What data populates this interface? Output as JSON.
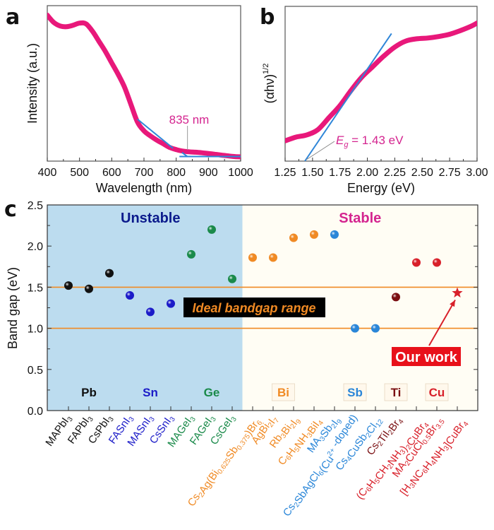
{
  "chart_data": [
    {
      "panel": "a",
      "type": "line",
      "title": "",
      "xlabel": "Wavelength (nm)",
      "ylabel": "Intensity (a.u.)",
      "xlim": [
        400,
        1000
      ],
      "ylim": [
        0,
        1
      ],
      "xticks": [
        "400",
        "500",
        "600",
        "700",
        "800",
        "900",
        "1000"
      ],
      "xtick_values": [
        400,
        500,
        600,
        700,
        800,
        900,
        1000
      ],
      "grid": false,
      "series": [
        {
          "name": "absorption",
          "color": "#e8187a",
          "x": [
            400,
            420,
            440,
            460,
            480,
            500,
            520,
            540,
            560,
            580,
            600,
            620,
            640,
            660,
            680,
            700,
            720,
            740,
            760,
            780,
            800,
            820,
            840,
            860,
            880,
            900,
            920,
            940,
            960,
            980,
            1000
          ],
          "y": [
            0.99,
            0.94,
            0.915,
            0.91,
            0.92,
            0.935,
            0.93,
            0.88,
            0.81,
            0.74,
            0.66,
            0.58,
            0.49,
            0.37,
            0.25,
            0.19,
            0.155,
            0.125,
            0.1,
            0.075,
            0.06,
            0.05,
            0.045,
            0.042,
            0.038,
            0.033,
            0.028,
            0.022,
            0.017,
            0.012,
            0.01
          ]
        }
      ],
      "tangent_lines": [
        {
          "color": "#2f86d8",
          "x": [
            680,
            790
          ],
          "y": [
            0.27,
            0.07
          ]
        },
        {
          "color": "#2f86d8",
          "x": [
            810,
            1000
          ],
          "y": [
            0.012,
            0.012
          ]
        },
        {
          "color": "#2f86d8",
          "x": [
            818,
            835
          ],
          "y": [
            0.04,
            0.012
          ]
        }
      ],
      "annotation": {
        "text": "835 nm",
        "x": 835,
        "color": "#d4248f"
      }
    },
    {
      "panel": "b",
      "type": "line",
      "title": "",
      "xlabel": "Energy (eV)",
      "ylabel_base": "(αhν)",
      "ylabel_sup": "1/2",
      "xlim": [
        1.25,
        3.0
      ],
      "ylim": [
        0,
        1
      ],
      "xticks": [
        "1.25",
        "1.50",
        "1.75",
        "2.00",
        "2.25",
        "2.50",
        "2.75",
        "3.00"
      ],
      "xtick_values": [
        1.25,
        1.5,
        1.75,
        2.0,
        2.25,
        2.5,
        2.75,
        3.0
      ],
      "grid": false,
      "series": [
        {
          "name": "tauc",
          "color": "#e8187a",
          "x": [
            1.25,
            1.35,
            1.45,
            1.55,
            1.65,
            1.75,
            1.85,
            1.95,
            2.05,
            2.15,
            2.25,
            2.35,
            2.45,
            2.55,
            2.65,
            2.75,
            2.85,
            2.95,
            3.0
          ],
          "y": [
            0.135,
            0.16,
            0.175,
            0.21,
            0.29,
            0.37,
            0.47,
            0.56,
            0.63,
            0.7,
            0.76,
            0.8,
            0.815,
            0.82,
            0.83,
            0.845,
            0.87,
            0.9,
            0.92
          ]
        }
      ],
      "tangent_lines": [
        {
          "color": "#2f86d8",
          "x": [
            1.43,
            2.22
          ],
          "y": [
            0.0,
            0.85
          ]
        }
      ],
      "annotation": {
        "text_base": "E",
        "text_sub": "g",
        "text_rest": " = 1.43 eV",
        "x": 1.43,
        "color": "#d4248f"
      }
    },
    {
      "panel": "c",
      "type": "scatter",
      "title": "",
      "xlabel": "",
      "ylabel": "Band gap (eV)",
      "ylim": [
        0.0,
        2.5
      ],
      "yticks": [
        "0.0",
        "0.5",
        "1.0",
        "1.5",
        "2.0",
        "2.5"
      ],
      "ytick_values": [
        0.0,
        0.5,
        1.0,
        1.5,
        2.0,
        2.5
      ],
      "grid": false,
      "reference_lines": [
        1.0,
        1.5
      ],
      "reference_line_color": "#f08a24",
      "regions": [
        {
          "label": "Unstable",
          "from_index": 0,
          "to_index": 8,
          "fill": "#bcdcef",
          "label_color": "#0b1a8c"
        },
        {
          "label": "Stable",
          "from_index": 9,
          "to_index": 19,
          "fill": "#fffdf4",
          "label_color": "#d4248f"
        }
      ],
      "band_label": {
        "text": "Ideal bandgap range",
        "color": "#f08a24",
        "background": "#000000"
      },
      "groups": [
        {
          "label": "Pb",
          "color": "#111111",
          "indices": [
            0,
            1,
            2
          ]
        },
        {
          "label": "Sn",
          "color": "#1b1bc8",
          "indices": [
            3,
            4,
            5
          ]
        },
        {
          "label": "Ge",
          "color": "#1a8a4a",
          "indices": [
            6,
            7,
            8
          ]
        },
        {
          "label": "Bi",
          "color": "#f08a24",
          "indices": [
            9,
            10,
            11,
            12
          ]
        },
        {
          "label": "Sb",
          "color": "#2a86d8",
          "indices": [
            13,
            14,
            15
          ]
        },
        {
          "label": "Ti",
          "color": "#7a0f12",
          "indices": [
            16
          ]
        },
        {
          "label": "Cu",
          "color": "#d8202a",
          "indices": [
            17,
            18,
            19
          ]
        }
      ],
      "categories": [
        {
          "label": "MAPbI3",
          "parts": [
            [
              "MAPbI",
              ""
            ],
            [
              "3",
              "sub"
            ]
          ],
          "value": 1.52,
          "color": "#111111"
        },
        {
          "label": "FAPbI3",
          "parts": [
            [
              "FAPbI",
              ""
            ],
            [
              "3",
              "sub"
            ]
          ],
          "value": 1.48,
          "color": "#111111"
        },
        {
          "label": "CsPbI3",
          "parts": [
            [
              "CsPbI",
              ""
            ],
            [
              "3",
              "sub"
            ]
          ],
          "value": 1.67,
          "color": "#111111"
        },
        {
          "label": "FASnI3",
          "parts": [
            [
              "FASnI",
              ""
            ],
            [
              "3",
              "sub"
            ]
          ],
          "value": 1.4,
          "color": "#1b1bc8"
        },
        {
          "label": "MASnI3",
          "parts": [
            [
              "MASnI",
              ""
            ],
            [
              "3",
              "sub"
            ]
          ],
          "value": 1.2,
          "color": "#1b1bc8"
        },
        {
          "label": "CsSnI3",
          "parts": [
            [
              "CsSnI",
              ""
            ],
            [
              "3",
              "sub"
            ]
          ],
          "value": 1.3,
          "color": "#1b1bc8"
        },
        {
          "label": "MAGeI3",
          "parts": [
            [
              "MAGeI",
              ""
            ],
            [
              "3",
              "sub"
            ]
          ],
          "value": 1.9,
          "color": "#1a8a4a"
        },
        {
          "label": "FAGeI3",
          "parts": [
            [
              "FAGeI",
              ""
            ],
            [
              "3",
              "sub"
            ]
          ],
          "value": 2.2,
          "color": "#1a8a4a"
        },
        {
          "label": "CsGeI3",
          "parts": [
            [
              "CsGeI",
              ""
            ],
            [
              "3",
              "sub"
            ]
          ],
          "value": 1.6,
          "color": "#1a8a4a"
        },
        {
          "label": "Cs2Ag(Bi0.625Sb0.375)Br6",
          "parts": [
            [
              "Cs",
              ""
            ],
            [
              "2",
              "sub"
            ],
            [
              "Ag(Bi",
              ""
            ],
            [
              "0.625",
              "sub"
            ],
            [
              "Sb",
              ""
            ],
            [
              "0.375",
              "sub"
            ],
            [
              ")Br",
              ""
            ],
            [
              "6",
              "sub"
            ]
          ],
          "value": 1.86,
          "color": "#f08a24"
        },
        {
          "label": "AgBi2I7",
          "parts": [
            [
              "AgBi",
              ""
            ],
            [
              "2",
              "sub"
            ],
            [
              "I",
              ""
            ],
            [
              "7",
              "sub"
            ]
          ],
          "value": 1.86,
          "color": "#f08a24"
        },
        {
          "label": "Rb3Bi2I9",
          "parts": [
            [
              "Rb",
              ""
            ],
            [
              "3",
              "sub"
            ],
            [
              "Bi",
              ""
            ],
            [
              "2",
              "sub"
            ],
            [
              "I",
              ""
            ],
            [
              "9",
              "sub"
            ]
          ],
          "value": 2.1,
          "color": "#f08a24"
        },
        {
          "label": "C6H5NH3BiI4",
          "parts": [
            [
              "C",
              ""
            ],
            [
              "6",
              "sub"
            ],
            [
              "H",
              ""
            ],
            [
              "5",
              "sub"
            ],
            [
              "NH",
              ""
            ],
            [
              "3",
              "sub"
            ],
            [
              "BiI",
              ""
            ],
            [
              "4",
              "sub"
            ]
          ],
          "value": 2.14,
          "color": "#f08a24"
        },
        {
          "label": "MA3Sb2I9",
          "parts": [
            [
              "MA",
              ""
            ],
            [
              "3",
              "sub"
            ],
            [
              "Sb",
              ""
            ],
            [
              "2",
              "sub"
            ],
            [
              "I",
              ""
            ],
            [
              "9",
              "sub"
            ]
          ],
          "value": 2.14,
          "color": "#2a86d8"
        },
        {
          "label": "Cs2SbAgCl6(Cu2+ -doped)",
          "parts": [
            [
              "Cs",
              ""
            ],
            [
              "2",
              "sub"
            ],
            [
              "SbAgCl",
              ""
            ],
            [
              "6",
              "sub"
            ],
            [
              "(Cu",
              ""
            ],
            [
              "2+",
              "sup"
            ],
            [
              " -doped)",
              ""
            ]
          ],
          "value": 1.0,
          "color": "#2a86d8"
        },
        {
          "label": "Cs4CuSb2Cl12",
          "parts": [
            [
              "Cs",
              ""
            ],
            [
              "4",
              "sub"
            ],
            [
              "CuSb",
              ""
            ],
            [
              "2",
              "sub"
            ],
            [
              "Cl",
              ""
            ],
            [
              "12",
              "sub"
            ]
          ],
          "value": 1.0,
          "color": "#2a86d8"
        },
        {
          "label": "Cs2TiI2Br4",
          "parts": [
            [
              "Cs",
              ""
            ],
            [
              "2",
              "sub"
            ],
            [
              "TiI",
              ""
            ],
            [
              "2",
              "sub"
            ],
            [
              "Br",
              ""
            ],
            [
              "4",
              "sub"
            ]
          ],
          "value": 1.38,
          "color": "#7a0f12"
        },
        {
          "label": "(C6H5CH2NH3)2CuBr4",
          "parts": [
            [
              "(C",
              ""
            ],
            [
              "6",
              "sub"
            ],
            [
              "H",
              ""
            ],
            [
              "5",
              "sub"
            ],
            [
              "CH",
              ""
            ],
            [
              "2",
              "sub"
            ],
            [
              "NH",
              ""
            ],
            [
              "3",
              "sub"
            ],
            [
              ")",
              ""
            ],
            [
              "2",
              "sub"
            ],
            [
              "CuBr",
              ""
            ],
            [
              "4",
              "sub"
            ]
          ],
          "value": 1.8,
          "color": "#d8202a"
        },
        {
          "label": "MA2CuCl0.5Br3.5",
          "parts": [
            [
              "MA",
              ""
            ],
            [
              "2",
              "sub"
            ],
            [
              "CuCl",
              ""
            ],
            [
              "0.5",
              "sub"
            ],
            [
              "Br",
              ""
            ],
            [
              "3.5",
              "sub"
            ]
          ],
          "value": 1.8,
          "color": "#d8202a"
        },
        {
          "label": "[H3NC6H4NH3]CuBr4",
          "parts": [
            [
              "[H",
              ""
            ],
            [
              "3",
              "sub"
            ],
            [
              "NC",
              ""
            ],
            [
              "6",
              "sub"
            ],
            [
              "H",
              ""
            ],
            [
              "4",
              "sub"
            ],
            [
              "NH",
              ""
            ],
            [
              "3",
              "sub"
            ],
            [
              "]CuBr",
              ""
            ],
            [
              "4",
              "sub"
            ]
          ],
          "value": 1.43,
          "color": "#d8202a",
          "marker": "star"
        }
      ],
      "highlight": {
        "text": "Our work",
        "index": 19,
        "background": "#e8111a",
        "text_color": "#ffffff"
      }
    }
  ]
}
